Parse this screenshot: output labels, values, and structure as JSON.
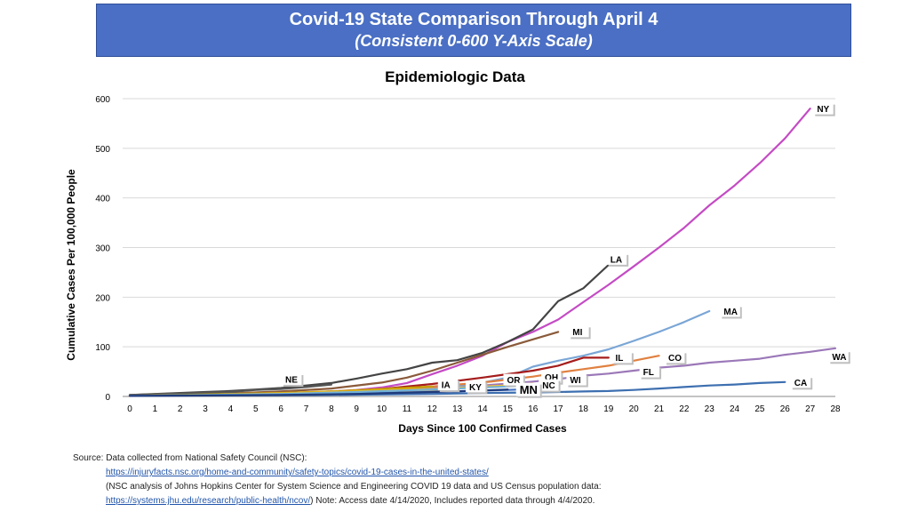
{
  "banner": {
    "title": "Covid-19 State Comparison Through April 4",
    "subtitle": "(Consistent 0-600 Y-Axis Scale)"
  },
  "source": {
    "line1": "Source: Data collected from National Safety Council (NSC):",
    "link1": "https://injuryfacts.nsc.org/home-and-community/safety-topics/covid-19-cases-in-the-united-states/",
    "line2": "(NSC analysis of Johns Hopkins Center for System Science and Engineering COVID 19 data and US Census population data:",
    "link2": "https://systems.jhu.edu/research/public-health/ncov/",
    "note": ")  Note: Access date 4/14/2020, Includes reported data through 4/4/2020."
  },
  "chart_data": {
    "type": "line",
    "title": "Epidemiologic Data",
    "xlabel": "Days Since 100 Confirmed Cases",
    "ylabel": "Cumulative Cases Per 100,000 People",
    "xlim": [
      0,
      28
    ],
    "ylim": [
      0,
      600
    ],
    "x_ticks": [
      0,
      1,
      2,
      3,
      4,
      5,
      6,
      7,
      8,
      9,
      10,
      11,
      12,
      13,
      14,
      15,
      16,
      17,
      18,
      19,
      20,
      21,
      22,
      23,
      24,
      25,
      26,
      27,
      28
    ],
    "y_ticks": [
      0,
      100,
      200,
      300,
      400,
      500,
      600
    ],
    "grid": "horizontal",
    "series": [
      {
        "name": "NY",
        "color": "#c44bc4",
        "x": [
          0,
          1,
          2,
          3,
          4,
          5,
          6,
          7,
          8,
          9,
          10,
          11,
          12,
          13,
          14,
          15,
          16,
          17,
          18,
          19,
          20,
          21,
          22,
          23,
          24,
          25,
          26,
          27
        ],
        "y": [
          1,
          2,
          3,
          4,
          5,
          6,
          7,
          8,
          10,
          13,
          18,
          27,
          45,
          62,
          82,
          110,
          130,
          155,
          190,
          225,
          262,
          300,
          340,
          385,
          425,
          470,
          520,
          580
        ]
      },
      {
        "name": "WA",
        "color": "#9b78b8",
        "x": [
          0,
          2,
          4,
          6,
          8,
          10,
          12,
          14,
          16,
          17,
          18,
          19,
          20,
          21,
          22,
          23,
          24,
          25,
          26,
          27,
          28
        ],
        "y": [
          2,
          3,
          5,
          7,
          9,
          13,
          17,
          22,
          30,
          35,
          42,
          46,
          52,
          58,
          62,
          68,
          72,
          76,
          84,
          90,
          97
        ]
      },
      {
        "name": "CA",
        "color": "#3d6fb0",
        "x": [
          0,
          4,
          8,
          12,
          14,
          16,
          17,
          18,
          19,
          20,
          21,
          22,
          23,
          24,
          25,
          26
        ],
        "y": [
          1,
          2,
          3,
          5,
          7,
          8,
          9,
          10,
          11,
          13,
          16,
          19,
          22,
          24,
          27,
          29
        ]
      },
      {
        "name": "LA",
        "color": "#444444",
        "x": [
          0,
          1,
          2,
          3,
          4,
          5,
          6,
          7,
          8,
          9,
          10,
          11,
          12,
          13,
          14,
          15,
          16,
          17,
          18,
          19
        ],
        "y": [
          3,
          5,
          7,
          9,
          11,
          14,
          17,
          22,
          27,
          36,
          46,
          55,
          68,
          73,
          88,
          110,
          135,
          192,
          218,
          265
        ]
      },
      {
        "name": "MA",
        "color": "#7aa6d6",
        "x": [
          0,
          2,
          4,
          6,
          8,
          10,
          12,
          14,
          15,
          16,
          17,
          18,
          19,
          20,
          21,
          22,
          23
        ],
        "y": [
          1,
          2,
          3,
          4,
          6,
          9,
          14,
          28,
          38,
          60,
          72,
          82,
          95,
          112,
          130,
          150,
          172
        ]
      },
      {
        "name": "MI",
        "color": "#8a5a3a",
        "x": [
          0,
          2,
          4,
          6,
          8,
          10,
          11,
          12,
          13,
          14,
          15,
          16,
          17
        ],
        "y": [
          2,
          4,
          6,
          10,
          16,
          28,
          38,
          52,
          68,
          84,
          100,
          115,
          130
        ]
      },
      {
        "name": "IL",
        "color": "#a51c1c",
        "x": [
          0,
          2,
          4,
          6,
          8,
          10,
          12,
          14,
          15,
          16,
          17,
          18,
          19
        ],
        "y": [
          1,
          2,
          4,
          6,
          9,
          15,
          25,
          38,
          45,
          52,
          62,
          78,
          78
        ]
      },
      {
        "name": "CO",
        "color": "#e08040",
        "x": [
          0,
          2,
          4,
          6,
          8,
          10,
          12,
          14,
          15,
          16,
          17,
          18,
          19,
          20,
          21
        ],
        "y": [
          2,
          3,
          5,
          7,
          10,
          14,
          20,
          28,
          34,
          40,
          48,
          55,
          62,
          72,
          82
        ]
      },
      {
        "name": "NE",
        "color": "#555555",
        "x": [
          0,
          2,
          4,
          5,
          6,
          7,
          8
        ],
        "y": [
          3,
          6,
          9,
          13,
          15,
          19,
          24
        ]
      },
      {
        "name": "IA",
        "color": "#c8a000",
        "x": [
          0,
          2,
          4,
          6,
          8,
          10,
          12
        ],
        "y": [
          1,
          3,
          5,
          7,
          10,
          15,
          20
        ]
      },
      {
        "name": "KY",
        "color": "#b8a080",
        "x": [
          0,
          3,
          6,
          9,
          12,
          13
        ],
        "y": [
          1,
          2,
          4,
          7,
          11,
          13
        ]
      },
      {
        "name": "OR",
        "color": "#e8c070",
        "x": [
          0,
          3,
          6,
          9,
          12,
          14,
          15
        ],
        "y": [
          1,
          3,
          5,
          9,
          14,
          20,
          22
        ]
      },
      {
        "name": "OH",
        "color": "#f0c030",
        "x": [
          0,
          3,
          6,
          9,
          12,
          15,
          16
        ],
        "y": [
          1,
          3,
          6,
          10,
          15,
          22,
          26
        ]
      },
      {
        "name": "NC",
        "color": "#4472c4",
        "x": [
          0,
          3,
          6,
          9,
          12,
          15,
          16
        ],
        "y": [
          1,
          2,
          4,
          6,
          9,
          13,
          15
        ]
      },
      {
        "name": "WI",
        "color": "#70b0d8",
        "x": [
          0,
          3,
          6,
          9,
          12,
          15,
          17
        ],
        "y": [
          1,
          3,
          5,
          9,
          14,
          20,
          24
        ]
      },
      {
        "name": "MN",
        "color": "#1f3a7a",
        "x": [
          0,
          3,
          6,
          9,
          12,
          14,
          15
        ],
        "y": [
          1,
          2,
          3,
          5,
          9,
          12,
          14
        ]
      }
    ],
    "labels": [
      {
        "series": "NY",
        "text": "NY",
        "x": 27.2,
        "y": 580
      },
      {
        "series": "LA",
        "text": "LA",
        "x": 19.0,
        "y": 277
      },
      {
        "series": "MA",
        "text": "MA",
        "x": 23.5,
        "y": 172
      },
      {
        "series": "MI",
        "text": "MI",
        "x": 17.5,
        "y": 131
      },
      {
        "series": "IL",
        "text": "IL",
        "x": 19.2,
        "y": 79
      },
      {
        "series": "CO",
        "text": "CO",
        "x": 21.3,
        "y": 79
      },
      {
        "series": "WA",
        "text": "WA",
        "x": 27.8,
        "y": 81
      },
      {
        "series": "CA",
        "text": "CA",
        "x": 26.3,
        "y": 29
      },
      {
        "series": "NE",
        "text": "NE",
        "x": 6.1,
        "y": 35
      },
      {
        "series": "IA",
        "text": "IA",
        "x": 12.3,
        "y": 24
      },
      {
        "series": "KY",
        "text": "KY",
        "x": 13.4,
        "y": 20
      },
      {
        "series": "OR",
        "text": "OR",
        "x": 14.9,
        "y": 34
      },
      {
        "series": "OH",
        "text": "OH",
        "x": 16.4,
        "y": 39
      },
      {
        "series": "FL",
        "text": "FL",
        "x": 20.3,
        "y": 50
      },
      {
        "series": "WI",
        "text": "WI",
        "x": 17.4,
        "y": 34
      },
      {
        "series": "NC",
        "text": "NC",
        "x": 16.3,
        "y": 23
      },
      {
        "series": "MN",
        "text": "MN",
        "x": 15.4,
        "y": 14
      }
    ]
  }
}
